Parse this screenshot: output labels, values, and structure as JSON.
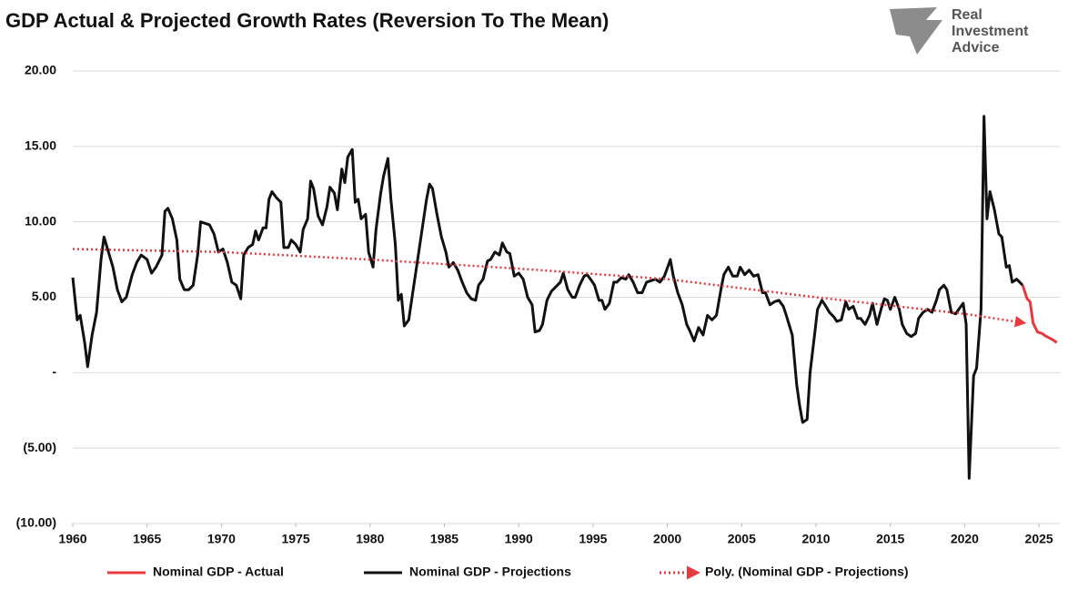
{
  "chart_data": {
    "type": "line",
    "title": "GDP Actual & Projected Growth Rates (Reversion To The Mean)",
    "logo": [
      "Real",
      "Investment",
      "Advice"
    ],
    "xlim": [
      1960,
      2026.4
    ],
    "xticks": [
      1960,
      1965,
      1970,
      1975,
      1980,
      1985,
      1990,
      1995,
      2000,
      2005,
      2010,
      2015,
      2020,
      2025
    ],
    "ylim": [
      -10,
      20
    ],
    "yticks": [
      {
        "value": -10,
        "label": "(10.00)"
      },
      {
        "value": -5,
        "label": "(5.00)"
      },
      {
        "value": 0,
        "label": "-"
      },
      {
        "value": 5,
        "label": "5.00"
      },
      {
        "value": 10,
        "label": "10.00"
      },
      {
        "value": 15,
        "label": "15.00"
      },
      {
        "value": 20,
        "label": "20.00"
      }
    ],
    "grid": true,
    "series": [
      {
        "name": "Nominal GDP - Actual",
        "color": "#e8393f",
        "style": "solid",
        "x": [
          2023.9,
          2024.2,
          2024.4,
          2024.6,
          2024.9,
          2025.2,
          2025.5,
          2025.9,
          2026.2
        ],
        "values": [
          5.8,
          4.9,
          4.7,
          3.3,
          2.7,
          2.6,
          2.4,
          2.2,
          2.0
        ]
      },
      {
        "name": "Nominal GDP - Projections",
        "color": "#111111",
        "style": "solid",
        "x": [
          1960.0,
          1960.3,
          1960.5,
          1960.8,
          1961.0,
          1961.3,
          1961.6,
          1961.9,
          1962.1,
          1962.4,
          1962.7,
          1963.0,
          1963.3,
          1963.6,
          1964.0,
          1964.3,
          1964.6,
          1965.0,
          1965.3,
          1965.6,
          1966.0,
          1966.2,
          1966.4,
          1966.7,
          1967.0,
          1967.2,
          1967.5,
          1967.8,
          1968.1,
          1968.4,
          1968.6,
          1968.9,
          1969.2,
          1969.5,
          1969.8,
          1970.1,
          1970.4,
          1970.7,
          1971.0,
          1971.3,
          1971.5,
          1971.8,
          1972.1,
          1972.3,
          1972.5,
          1972.8,
          1973.0,
          1973.2,
          1973.4,
          1973.7,
          1974.0,
          1974.2,
          1974.5,
          1974.7,
          1975.0,
          1975.3,
          1975.5,
          1975.8,
          1976.0,
          1976.2,
          1976.5,
          1976.8,
          1977.1,
          1977.3,
          1977.6,
          1977.8,
          1978.1,
          1978.3,
          1978.5,
          1978.8,
          1979.0,
          1979.2,
          1979.4,
          1979.7,
          1979.9,
          1980.2,
          1980.4,
          1980.7,
          1980.9,
          1981.2,
          1981.4,
          1981.7,
          1981.9,
          1982.1,
          1982.3,
          1982.6,
          1982.9,
          1983.2,
          1983.5,
          1983.8,
          1984.0,
          1984.2,
          1984.5,
          1984.8,
          1985.1,
          1985.3,
          1985.6,
          1985.9,
          1986.2,
          1986.5,
          1986.8,
          1987.1,
          1987.3,
          1987.6,
          1987.9,
          1988.1,
          1988.4,
          1988.7,
          1988.9,
          1989.2,
          1989.4,
          1989.7,
          1990.0,
          1990.3,
          1990.6,
          1990.9,
          1991.1,
          1991.4,
          1991.6,
          1991.9,
          1992.2,
          1992.5,
          1992.8,
          1993.0,
          1993.3,
          1993.6,
          1993.8,
          1994.1,
          1994.4,
          1994.6,
          1994.9,
          1995.1,
          1995.4,
          1995.6,
          1995.8,
          1996.1,
          1996.4,
          1996.6,
          1996.9,
          1997.2,
          1997.4,
          1997.7,
          1998.0,
          1998.3,
          1998.6,
          1998.9,
          1999.2,
          1999.5,
          1999.8,
          2000.2,
          2000.4,
          2000.7,
          2001.0,
          2001.3,
          2001.5,
          2001.8,
          2002.1,
          2002.4,
          2002.7,
          2003.0,
          2003.3,
          2003.6,
          2003.8,
          2004.1,
          2004.4,
          2004.7,
          2004.9,
          2005.2,
          2005.5,
          2005.8,
          2006.1,
          2006.4,
          2006.6,
          2006.9,
          2007.2,
          2007.5,
          2007.8,
          2008.0,
          2008.4,
          2008.7,
          2008.9,
          2009.1,
          2009.4,
          2009.6,
          2009.9,
          2010.1,
          2010.4,
          2010.6,
          2010.9,
          2011.2,
          2011.4,
          2011.7,
          2012.0,
          2012.2,
          2012.5,
          2012.8,
          2013.0,
          2013.3,
          2013.6,
          2013.8,
          2014.1,
          2014.4,
          2014.6,
          2014.8,
          2015.0,
          2015.3,
          2015.6,
          2015.8,
          2016.1,
          2016.4,
          2016.7,
          2016.9,
          2017.2,
          2017.5,
          2017.8,
          2018.1,
          2018.3,
          2018.6,
          2018.8,
          2019.1,
          2019.4,
          2019.6,
          2019.9,
          2020.1,
          2020.3,
          2020.6,
          2020.8,
          2021.1,
          2021.3,
          2021.5,
          2021.7,
          2022.0,
          2022.3,
          2022.5,
          2022.8,
          2023.0,
          2023.2,
          2023.5,
          2023.7,
          2023.9
        ],
        "values": [
          6.3,
          3.5,
          3.8,
          2.0,
          0.4,
          2.5,
          4.0,
          7.5,
          9.0,
          8.0,
          7.0,
          5.5,
          4.7,
          5.0,
          6.5,
          7.3,
          7.8,
          7.5,
          6.6,
          7.0,
          7.8,
          10.7,
          10.9,
          10.2,
          8.8,
          6.2,
          5.5,
          5.5,
          5.8,
          7.8,
          10.0,
          9.9,
          9.8,
          9.2,
          8.0,
          8.2,
          7.3,
          6.0,
          5.8,
          4.9,
          7.8,
          8.3,
          8.5,
          9.4,
          8.8,
          9.6,
          9.6,
          11.5,
          12.0,
          11.6,
          11.3,
          8.3,
          8.3,
          8.8,
          8.5,
          8.0,
          9.5,
          10.2,
          12.7,
          12.2,
          10.4,
          9.8,
          11.0,
          12.3,
          11.9,
          10.8,
          13.5,
          12.6,
          14.3,
          14.8,
          11.3,
          11.5,
          10.2,
          10.5,
          8.0,
          7.0,
          9.5,
          11.8,
          13.0,
          14.2,
          11.5,
          8.5,
          4.8,
          5.2,
          3.1,
          3.5,
          5.5,
          7.5,
          9.5,
          11.5,
          12.5,
          12.2,
          10.5,
          9.0,
          8.0,
          7.0,
          7.3,
          6.8,
          6.0,
          5.3,
          4.9,
          4.8,
          5.8,
          6.2,
          7.4,
          7.5,
          8.0,
          7.8,
          8.6,
          8.0,
          7.9,
          6.4,
          6.6,
          6.2,
          5.0,
          4.5,
          2.7,
          2.8,
          3.2,
          4.8,
          5.4,
          5.7,
          6.0,
          6.6,
          5.5,
          5.0,
          5.0,
          5.8,
          6.4,
          6.5,
          6.1,
          5.8,
          4.8,
          4.8,
          4.2,
          4.6,
          6.0,
          6.0,
          6.3,
          6.2,
          6.5,
          6.0,
          5.3,
          5.3,
          6.0,
          6.1,
          6.2,
          6.0,
          6.4,
          7.5,
          6.4,
          5.3,
          4.5,
          3.2,
          2.8,
          2.1,
          3.0,
          2.5,
          3.8,
          3.5,
          3.8,
          5.5,
          6.5,
          7.0,
          6.4,
          6.4,
          7.0,
          6.5,
          6.8,
          6.4,
          6.5,
          5.3,
          5.3,
          4.5,
          4.7,
          4.8,
          4.4,
          3.8,
          2.5,
          -0.8,
          -2.2,
          -3.3,
          -3.1,
          0.0,
          2.5,
          4.2,
          4.8,
          4.5,
          4.0,
          3.7,
          3.4,
          3.5,
          4.7,
          4.2,
          4.4,
          3.6,
          3.6,
          3.2,
          3.8,
          4.6,
          3.2,
          4.3,
          4.9,
          4.8,
          4.2,
          5.0,
          4.2,
          3.2,
          2.6,
          2.4,
          2.6,
          3.6,
          4.0,
          4.2,
          4.0,
          4.8,
          5.5,
          5.8,
          5.5,
          4.0,
          3.9,
          4.2,
          4.6,
          3.2,
          -7.0,
          -0.2,
          0.3,
          4.2,
          17.0,
          10.2,
          12.0,
          10.8,
          9.2,
          9.0,
          7.0,
          7.1,
          6.0,
          6.2,
          6.0,
          5.8
        ]
      },
      {
        "name": "Poly. (Nominal GDP - Projections)",
        "color": "#e8393f",
        "style": "dotted",
        "x": [
          1960,
          1970,
          1980,
          1990,
          2000,
          2010,
          2020,
          2024
        ],
        "values": [
          8.2,
          8.0,
          7.5,
          6.9,
          6.2,
          5.0,
          3.9,
          3.3
        ]
      }
    ]
  }
}
